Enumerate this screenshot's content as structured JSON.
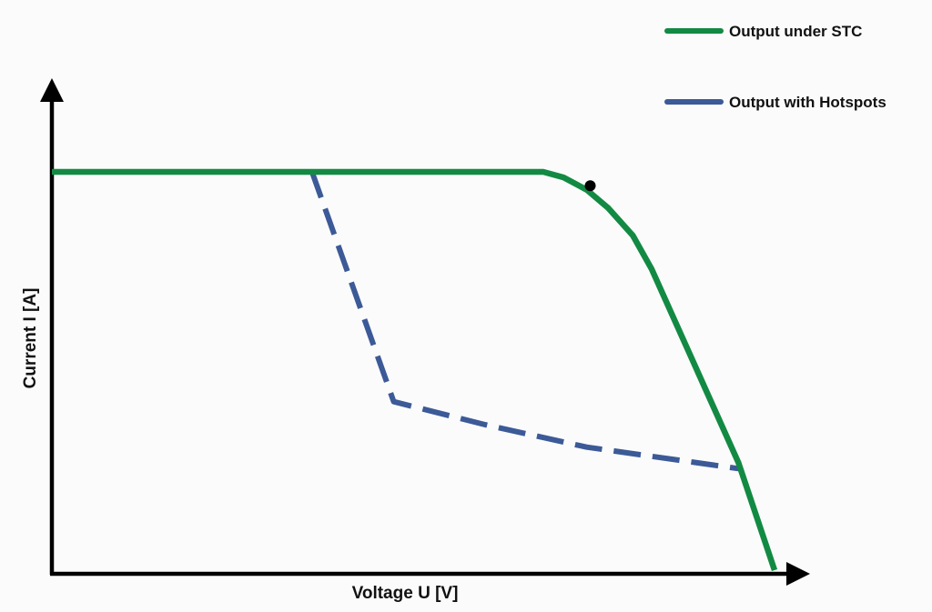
{
  "chart_data": {
    "type": "line",
    "title": "",
    "xlabel": "Voltage U [V]",
    "ylabel": "Current I [A]",
    "xlim": [
      0,
      100
    ],
    "ylim": [
      0,
      100
    ],
    "ticks": "none",
    "grid": false,
    "legend_position": "top-right",
    "series": [
      {
        "name": "Output under STC",
        "color": "#138a43",
        "style": "solid",
        "points": [
          [
            0,
            100
          ],
          [
            68,
            100
          ],
          [
            70.8,
            98.6
          ],
          [
            74,
            95.5
          ],
          [
            77,
            90.9
          ],
          [
            80.4,
            84
          ],
          [
            83,
            75.6
          ],
          [
            95,
            27
          ],
          [
            100,
            0
          ]
        ]
      },
      {
        "name": "Output with Hotspots",
        "color": "#3c5a97",
        "style": "dashed",
        "points": [
          [
            36,
            100
          ],
          [
            47.3,
            42.3
          ],
          [
            60,
            36.5
          ],
          [
            74,
            30.9
          ],
          [
            95,
            25.5
          ]
        ]
      }
    ],
    "markers": [
      {
        "x": 74.5,
        "y": 96.5,
        "color": "#000000",
        "label": ""
      }
    ]
  }
}
